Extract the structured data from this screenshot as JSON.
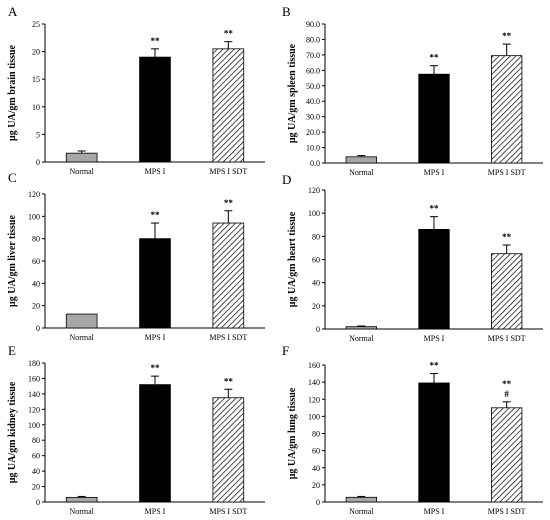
{
  "chart_data": [
    {
      "panel": "A",
      "type": "bar",
      "ylabel": "μg UA/gm brain tissue",
      "categories": [
        "Normal",
        "MPS I",
        "MPS I SDT"
      ],
      "values": [
        1.6,
        19.0,
        20.5
      ],
      "errors": [
        0.4,
        1.5,
        1.3
      ],
      "annotations": [
        "",
        "**",
        "**"
      ],
      "ylim": [
        0,
        25
      ],
      "yticks": [
        "0",
        "5",
        "10",
        "15",
        "20",
        "25"
      ]
    },
    {
      "panel": "B",
      "type": "bar",
      "ylabel": "μg UA/gm spleen tissue",
      "categories": [
        "Normal",
        "MPS I",
        "MPS I SDT"
      ],
      "values": [
        4.0,
        57.5,
        69.5
      ],
      "errors": [
        0.8,
        5.5,
        7.5
      ],
      "annotations": [
        "",
        "**",
        "**"
      ],
      "ylim": [
        0,
        90
      ],
      "yticks": [
        "0.0",
        "10.0",
        "20.0",
        "30.0",
        "40.0",
        "50.0",
        "60.0",
        "70.0",
        "80.0",
        "90.0"
      ]
    },
    {
      "panel": "C",
      "type": "bar",
      "ylabel": "μg UA/gm liver tissue",
      "categories": [
        "Normal",
        "MPS I",
        "MPS I SDT"
      ],
      "values": [
        12.5,
        80.0,
        94.0
      ],
      "errors": [
        0,
        14.0,
        11.0
      ],
      "annotations": [
        "",
        "**",
        "**"
      ],
      "ylim": [
        0,
        120
      ],
      "yticks": [
        "0",
        "20",
        "40",
        "60",
        "80",
        "100",
        "120"
      ]
    },
    {
      "panel": "D",
      "type": "bar",
      "ylabel": "μg UA/gm heart tissue",
      "categories": [
        "Normal",
        "MPS I",
        "MPS I SDT"
      ],
      "values": [
        2.0,
        86.0,
        65.0
      ],
      "errors": [
        0.6,
        11.0,
        7.5
      ],
      "annotations": [
        "",
        "**",
        "**"
      ],
      "ylim": [
        0,
        120
      ],
      "yticks": [
        "0",
        "20",
        "40",
        "60",
        "80",
        "100",
        "120"
      ]
    },
    {
      "panel": "E",
      "type": "bar",
      "ylabel": "μg UA/gm kidney tissue",
      "categories": [
        "Normal",
        "MPS I",
        "MPS I SDT"
      ],
      "values": [
        6.0,
        152.0,
        135.0
      ],
      "errors": [
        1.2,
        11.0,
        11.0
      ],
      "annotations": [
        "",
        "**",
        "**"
      ],
      "ylim": [
        0,
        180
      ],
      "yticks": [
        "0",
        "20",
        "40",
        "60",
        "80",
        "100",
        "120",
        "140",
        "160",
        "180"
      ]
    },
    {
      "panel": "F",
      "type": "bar",
      "ylabel": "μg UA/gm lung tissue",
      "categories": [
        "Normal",
        "MPS I",
        "MPS I SDT"
      ],
      "values": [
        5.5,
        139.0,
        110.0
      ],
      "errors": [
        1.0,
        11.0,
        7.0
      ],
      "annotations": [
        "",
        "**",
        "**\n#"
      ],
      "ylim": [
        0,
        160
      ],
      "yticks": [
        "0",
        "20",
        "40",
        "60",
        "80",
        "100",
        "120",
        "140",
        "160"
      ]
    }
  ],
  "style": {
    "normal_fill": "#a6a6a6",
    "mpsi_fill": "#000000",
    "sdt_pattern": "diagonal-hatch",
    "axis_color": "#000000"
  }
}
